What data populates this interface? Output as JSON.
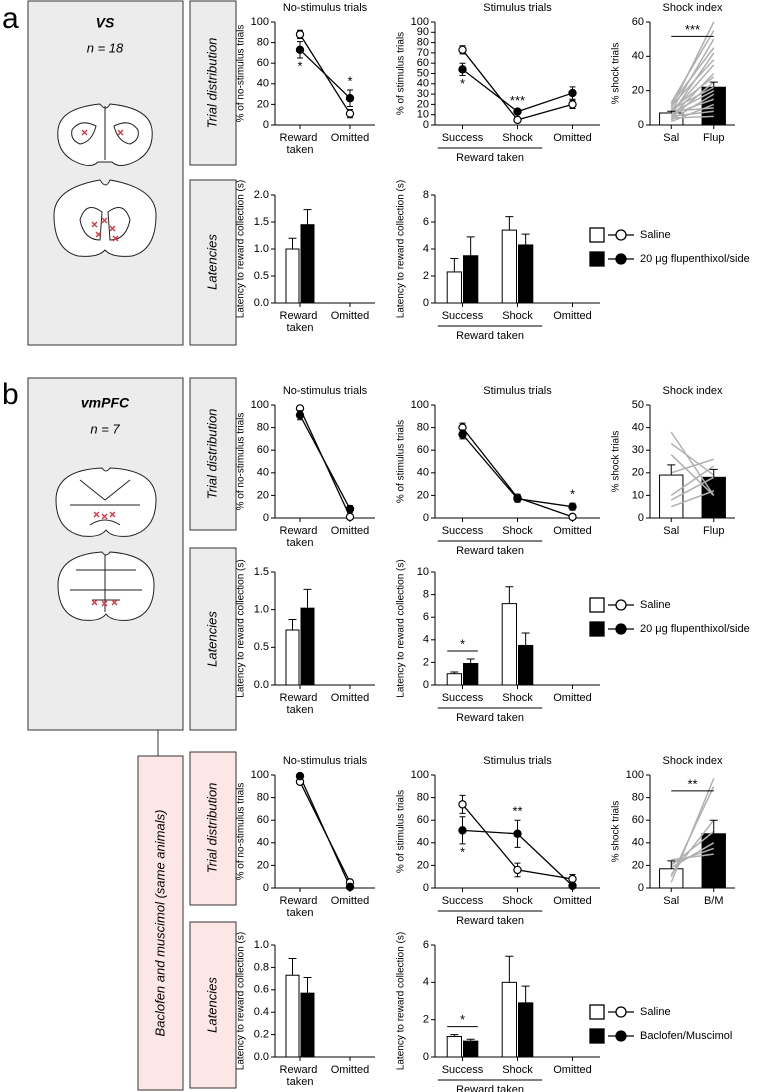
{
  "figure": {
    "panels": [
      {
        "label": "a",
        "region": "VS",
        "n": "n = 18",
        "rows": [
          "Trial distribution",
          "Latencies"
        ]
      },
      {
        "label": "b",
        "region": "vmPFC",
        "n": "n = 7",
        "rows": [
          "Trial distribution",
          "Latencies"
        ]
      },
      {
        "region": "Baclofen and muscimol (same animals)",
        "rows": [
          "Trial distribution",
          "Latencies"
        ]
      }
    ]
  },
  "chart_data": [
    {
      "type": "line",
      "title": "No-stimulus trials",
      "ylabel": "% of no-stimulus trials",
      "categories": [
        "Reward taken",
        "Omitted"
      ],
      "ylim": [
        0,
        100
      ],
      "yticks": [
        0,
        20,
        40,
        60,
        80,
        100
      ],
      "series": [
        {
          "color": "#ffffff",
          "values": [
            88,
            11
          ],
          "errors": [
            4,
            4
          ]
        },
        {
          "color": "#000000",
          "values": [
            73,
            26
          ],
          "errors": [
            8,
            8
          ]
        }
      ],
      "significance": [
        "*",
        "*"
      ]
    },
    {
      "type": "line",
      "title": "Stimulus trials",
      "ylabel": "% of stimulus trials",
      "categories": [
        "Success",
        "Shock",
        "Omitted"
      ],
      "category_colors": [
        "#1e9e4a",
        "#e0303a",
        "#000000"
      ],
      "group_label": "Reward taken",
      "ylim": [
        0,
        100
      ],
      "yticks": [
        0,
        10,
        20,
        30,
        40,
        50,
        60,
        70,
        80,
        90,
        100
      ],
      "series": [
        {
          "color": "#ffffff",
          "values": [
            73,
            5,
            20
          ],
          "errors": [
            4,
            2,
            4
          ]
        },
        {
          "color": "#000000",
          "values": [
            54,
            13,
            31
          ],
          "errors": [
            6,
            2,
            6
          ]
        }
      ],
      "significance": [
        "*",
        "***",
        null
      ]
    },
    {
      "type": "shock",
      "title": "Shock index",
      "ylabel": "% shock trials",
      "categories": [
        "Sal",
        "Flup"
      ],
      "ylim": [
        0,
        60
      ],
      "yticks": [
        0,
        20,
        40,
        60
      ],
      "values": [
        7,
        22
      ],
      "errors": [
        1,
        3
      ],
      "colors": [
        "#ffffff",
        "#000000"
      ],
      "subject_color": "#b0b0b0",
      "subjects": [
        [
          2,
          12
        ],
        [
          3,
          18
        ],
        [
          4,
          25
        ],
        [
          5,
          8
        ],
        [
          5,
          30
        ],
        [
          6,
          15
        ],
        [
          6,
          42
        ],
        [
          7,
          20
        ],
        [
          7,
          35
        ],
        [
          8,
          10
        ],
        [
          8,
          50
        ],
        [
          9,
          22
        ],
        [
          9,
          28
        ],
        [
          10,
          60
        ],
        [
          11,
          38
        ],
        [
          12,
          45
        ],
        [
          4,
          5
        ],
        [
          13,
          55
        ]
      ],
      "significance": "***"
    },
    {
      "type": "bar",
      "ylabel": "Latency to reward collection (s)",
      "categories": [
        "Reward taken",
        "Omitted"
      ],
      "ylim": [
        0,
        2
      ],
      "yticks": [
        {
          "value": 0,
          "label": "0.0"
        },
        0.5,
        {
          "value": 1,
          "label": "1.0"
        },
        1.5,
        {
          "value": 2,
          "label": "2.0"
        }
      ],
      "series": [
        {
          "color": "#ffffff",
          "values": [
            1.0,
            null
          ],
          "errors": [
            0.2,
            null
          ]
        },
        {
          "color": "#000000",
          "values": [
            1.45,
            null
          ],
          "errors": [
            0.28,
            null
          ]
        }
      ]
    },
    {
      "type": "bar",
      "ylabel": "Latency to reward collection (s)",
      "categories": [
        "Success",
        "Shock",
        "Omitted"
      ],
      "category_colors": [
        "#1e9e4a",
        "#e0303a",
        "#000000"
      ],
      "group_label": "Reward taken",
      "ylim": [
        0,
        8
      ],
      "yticks": [
        0,
        2,
        4,
        6,
        8
      ],
      "series": [
        {
          "name": "Saline",
          "color": "#ffffff",
          "values": [
            2.3,
            5.4,
            null
          ],
          "errors": [
            1.0,
            1.0,
            null
          ]
        },
        {
          "name": "20 μg flupenthixol/side",
          "color": "#000000",
          "values": [
            3.5,
            4.3,
            null
          ],
          "errors": [
            1.4,
            0.8,
            null
          ]
        }
      ]
    },
    {
      "type": "line",
      "title": "No-stimulus trials",
      "ylabel": "% of no-stimulus trials",
      "categories": [
        "Reward taken",
        "Omitted"
      ],
      "ylim": [
        0,
        100
      ],
      "yticks": [
        0,
        20,
        40,
        60,
        80,
        100
      ],
      "series": [
        {
          "color": "#ffffff",
          "values": [
            97,
            1
          ],
          "errors": [
            2,
            1
          ]
        },
        {
          "color": "#000000",
          "values": [
            91,
            8
          ],
          "errors": [
            4,
            3
          ]
        }
      ]
    },
    {
      "type": "line",
      "title": "Stimulus trials",
      "ylabel": "% of stimulus trials",
      "categories": [
        "Success",
        "Shock",
        "Omitted"
      ],
      "category_colors": [
        "#1e9e4a",
        "#e0303a",
        "#000000"
      ],
      "group_label": "Reward taken",
      "ylim": [
        0,
        100
      ],
      "yticks": [
        0,
        20,
        40,
        60,
        80,
        100
      ],
      "series": [
        {
          "color": "#ffffff",
          "values": [
            80,
            18,
            1
          ],
          "errors": [
            4,
            3,
            1
          ]
        },
        {
          "color": "#000000",
          "values": [
            74,
            17,
            10
          ],
          "errors": [
            4,
            3,
            3
          ]
        }
      ],
      "significance": [
        null,
        null,
        "*"
      ]
    },
    {
      "type": "shock",
      "title": "Shock index",
      "ylabel": "% shock trials",
      "categories": [
        "Sal",
        "Flup"
      ],
      "ylim": [
        0,
        50
      ],
      "yticks": [
        0,
        10,
        20,
        30,
        40,
        50
      ],
      "values": [
        19,
        18
      ],
      "errors": [
        4.5,
        3.5
      ],
      "colors": [
        "#ffffff",
        "#000000"
      ],
      "subject_color": "#b0b0b0",
      "subjects": [
        [
          38,
          10
        ],
        [
          33,
          19
        ],
        [
          28,
          10
        ],
        [
          20,
          26
        ],
        [
          10,
          23
        ],
        [
          8,
          18
        ],
        [
          5,
          12
        ]
      ]
    },
    {
      "type": "bar",
      "ylabel": "Latency to reward collection (s)",
      "categories": [
        "Reward taken",
        "Omitted"
      ],
      "ylim": [
        0,
        1.5
      ],
      "yticks": [
        {
          "value": 0,
          "label": "0.0"
        },
        0.5,
        {
          "value": 1,
          "label": "1.0"
        },
        1.5
      ],
      "series": [
        {
          "color": "#ffffff",
          "values": [
            0.73,
            null
          ],
          "errors": [
            0.14,
            null
          ]
        },
        {
          "color": "#000000",
          "values": [
            1.02,
            null
          ],
          "errors": [
            0.25,
            null
          ]
        }
      ]
    },
    {
      "type": "bar",
      "ylabel": "Latency to reward collection (s)",
      "categories": [
        "Success",
        "Shock",
        "Omitted"
      ],
      "category_colors": [
        "#1e9e4a",
        "#e0303a",
        "#000000"
      ],
      "group_label": "Reward taken",
      "ylim": [
        0,
        10
      ],
      "yticks": [
        0,
        2,
        4,
        6,
        8,
        10
      ],
      "series": [
        {
          "name": "Saline",
          "color": "#ffffff",
          "values": [
            1.0,
            7.2,
            null
          ],
          "errors": [
            0.15,
            1.5,
            null
          ]
        },
        {
          "name": "20 μg flupenthixol/side",
          "color": "#000000",
          "values": [
            1.9,
            3.5,
            null
          ],
          "errors": [
            0.4,
            1.1,
            null
          ]
        }
      ],
      "significance": [
        "*",
        null,
        null
      ]
    },
    {
      "type": "line",
      "title": "No-stimulus trials",
      "ylabel": "% of no-stimulus trials",
      "categories": [
        "Reward taken",
        "Omitted"
      ],
      "ylim": [
        0,
        100
      ],
      "yticks": [
        0,
        20,
        40,
        60,
        80,
        100
      ],
      "series": [
        {
          "color": "#ffffff",
          "values": [
            94,
            5
          ],
          "errors": [
            1,
            1
          ]
        },
        {
          "color": "#000000",
          "values": [
            99,
            1
          ],
          "errors": [
            1,
            1
          ]
        }
      ]
    },
    {
      "type": "line",
      "title": "Stimulus trials",
      "ylabel": "% of stimulus trials",
      "categories": [
        "Success",
        "Shock",
        "Omitted"
      ],
      "category_colors": [
        "#1e9e4a",
        "#e0303a",
        "#000000"
      ],
      "group_label": "Reward taken",
      "ylim": [
        0,
        100
      ],
      "yticks": [
        0,
        20,
        40,
        60,
        80,
        100
      ],
      "series": [
        {
          "color": "#ffffff",
          "values": [
            74,
            16,
            8
          ],
          "errors": [
            8,
            6,
            4
          ]
        },
        {
          "color": "#000000",
          "values": [
            51,
            48,
            2
          ],
          "errors": [
            12,
            12,
            2
          ]
        }
      ],
      "significance": [
        "*",
        "**",
        null
      ]
    },
    {
      "type": "shock",
      "title": "Shock index",
      "ylabel": "% shock trials",
      "categories": [
        "Sal",
        "B/M"
      ],
      "ylim": [
        0,
        100
      ],
      "yticks": [
        0,
        20,
        40,
        60,
        80,
        100
      ],
      "values": [
        17,
        48
      ],
      "errors": [
        7,
        12
      ],
      "colors": [
        "#ffffff",
        "#000000"
      ],
      "subject_color": "#b0b0b0",
      "subjects": [
        [
          5,
          97
        ],
        [
          10,
          90
        ],
        [
          12,
          60
        ],
        [
          18,
          40
        ],
        [
          22,
          35
        ],
        [
          25,
          30
        ],
        [
          20,
          50
        ]
      ],
      "significance": "**"
    },
    {
      "type": "bar",
      "ylabel": "Latency to reward collection (s)",
      "categories": [
        "Reward taken",
        "Omitted"
      ],
      "ylim": [
        0,
        1
      ],
      "yticks": [
        {
          "value": 0,
          "label": "0.0"
        },
        0.2,
        0.4,
        0.6,
        0.8,
        {
          "value": 1,
          "label": "1.0"
        }
      ],
      "series": [
        {
          "color": "#ffffff",
          "values": [
            0.73,
            null
          ],
          "errors": [
            0.15,
            null
          ]
        },
        {
          "color": "#000000",
          "values": [
            0.57,
            null
          ],
          "errors": [
            0.14,
            null
          ]
        }
      ]
    },
    {
      "type": "bar",
      "ylabel": "Latency to reward collection (s)",
      "categories": [
        "Success",
        "Shock",
        "Omitted"
      ],
      "category_colors": [
        "#1e9e4a",
        "#e0303a",
        "#000000"
      ],
      "group_label": "Reward taken",
      "ylim": [
        0,
        6
      ],
      "yticks": [
        0,
        2,
        4,
        6
      ],
      "series": [
        {
          "name": "Saline",
          "color": "#ffffff",
          "values": [
            1.1,
            4.0,
            null
          ],
          "errors": [
            0.1,
            1.4,
            null
          ]
        },
        {
          "name": "Baclofen/Muscimol",
          "color": "#000000",
          "values": [
            0.85,
            2.9,
            null
          ],
          "errors": [
            0.1,
            0.9,
            null
          ]
        }
      ],
      "significance": [
        "*",
        null,
        null
      ]
    }
  ]
}
